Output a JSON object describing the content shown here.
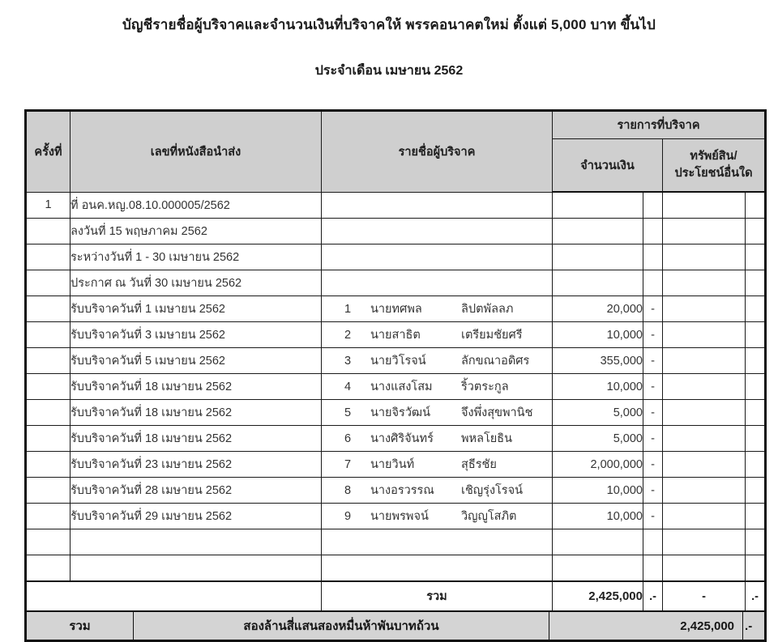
{
  "page": {
    "title": "บัญชีรายชื่อผู้บริจาคและจำนวนเงินที่บริจาคให้ พรรคอนาคตใหม่ ตั้งแต่ 5,000 บาท ขึ้นไป",
    "subtitle": "ประจำเดือน เมษายน 2562"
  },
  "table": {
    "headers": {
      "no": "ครั้งที่",
      "letter_no": "เลขที่หนังสือนำส่ง",
      "donor_names": "รายชื่อผู้บริจาค",
      "donation_items": "รายการที่บริจาค",
      "amount": "จำนวนเงิน",
      "assets_line1": "ทรัพย์สิน/",
      "assets_line2": "ประโยชน์อื่นใด"
    },
    "info_rows": [
      {
        "no": "1",
        "letter": "ที่ อนค.หญ.08.10.000005/2562"
      },
      {
        "no": "",
        "letter": "ลงวันที่ 15 พฤษภาคม 2562"
      },
      {
        "no": "",
        "letter": "ระหว่างวันที่ 1 - 30 เมษายน 2562"
      },
      {
        "no": "",
        "letter": "ประกาศ ณ วันที่ 30 เมษายน 2562"
      }
    ],
    "donation_rows": [
      {
        "letter": "รับบริจาควันที่ 1 เมษายน 2562",
        "idx": "1",
        "first": "นายทศพล",
        "last": "ลิปตพัลลภ",
        "amount": "20,000",
        "satang": "-"
      },
      {
        "letter": "รับบริจาควันที่ 3 เมษายน 2562",
        "idx": "2",
        "first": "นายสาธิต",
        "last": "เตรียมชัยศรี",
        "amount": "10,000",
        "satang": "-"
      },
      {
        "letter": "รับบริจาควันที่ 5 เมษายน 2562",
        "idx": "3",
        "first": "นายวิโรจน์",
        "last": "ลักขณาอดิศร",
        "amount": "355,000",
        "satang": "-"
      },
      {
        "letter": "รับบริจาควันที่ 18 เมษายน 2562",
        "idx": "4",
        "first": "นางแสงโสม",
        "last": "ริ้วตระกูล",
        "amount": "10,000",
        "satang": "-"
      },
      {
        "letter": "รับบริจาควันที่ 18 เมษายน 2562",
        "idx": "5",
        "first": "นายจิรวัฒน์",
        "last": "จึงพึ่งสุขพานิช",
        "amount": "5,000",
        "satang": "-"
      },
      {
        "letter": "รับบริจาควันที่ 18 เมษายน 2562",
        "idx": "6",
        "first": "นางศิริจันทร์",
        "last": "พหลโยธิน",
        "amount": "5,000",
        "satang": "-"
      },
      {
        "letter": "รับบริจาควันที่ 23 เมษายน 2562",
        "idx": "7",
        "first": "นายวินท์",
        "last": "สุธีรชัย",
        "amount": "2,000,000",
        "satang": "-"
      },
      {
        "letter": "รับบริจาควันที่ 28 เมษายน 2562",
        "idx": "8",
        "first": "นางอรวรรณ",
        "last": "เชิญรุ่งโรจน์",
        "amount": "10,000",
        "satang": "-"
      },
      {
        "letter": "รับบริจาควันที่ 29 เมษายน 2562",
        "idx": "9",
        "first": "นายพรพจน์",
        "last": "วิญญูโสภิต",
        "amount": "10,000",
        "satang": "-"
      }
    ],
    "empty_row_count": 2,
    "subtotal": {
      "label": "รวม",
      "amount": "2,425,000",
      "amount_satang": ".-",
      "assets": "-",
      "assets_satang": ".-"
    },
    "grand_total": {
      "label": "รวม",
      "amount_text": "สองล้านสี่แสนสองหมื่นห้าพันบาทถ้วน",
      "amount": "2,425,000",
      "satang": ".-"
    }
  }
}
